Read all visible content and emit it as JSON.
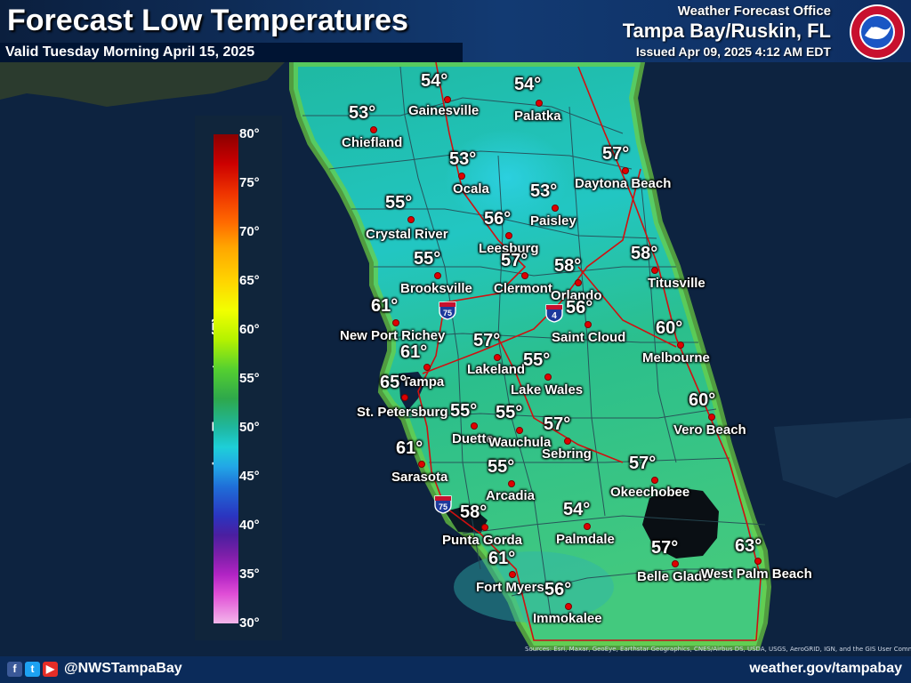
{
  "header": {
    "title": "Forecast Low Temperatures",
    "valid": "Valid Tuesday Morning April 15, 2025",
    "office_top": "Weather Forecast Office",
    "office_location": "Tampa Bay/Ruskin, FL",
    "issued": "Issued Apr 09, 2025 4:12 AM EDT",
    "logo_text": "NATIONAL WEATHER SERVICE"
  },
  "legend": {
    "title": "Low Temperature (F)",
    "ticks": [
      "80°",
      "75°",
      "70°",
      "65°",
      "60°",
      "55°",
      "50°",
      "45°",
      "40°",
      "35°",
      "30°"
    ]
  },
  "cities": [
    {
      "name": "Gainesville",
      "temp": "54°"
    },
    {
      "name": "Palatka",
      "temp": "54°"
    },
    {
      "name": "Chiefland",
      "temp": "53°"
    },
    {
      "name": "Ocala",
      "temp": "53°"
    },
    {
      "name": "Daytona Beach",
      "temp": "57°"
    },
    {
      "name": "Paisley",
      "temp": "53°"
    },
    {
      "name": "Crystal River",
      "temp": "55°"
    },
    {
      "name": "Leesburg",
      "temp": "56°"
    },
    {
      "name": "Clermont",
      "temp": "57°"
    },
    {
      "name": "Orlando",
      "temp": "58°"
    },
    {
      "name": "Titusville",
      "temp": "58°"
    },
    {
      "name": "Brooksville",
      "temp": "55°"
    },
    {
      "name": "New Port Richey",
      "temp": "61°"
    },
    {
      "name": "Saint Cloud",
      "temp": "56°"
    },
    {
      "name": "Melbourne",
      "temp": "60°"
    },
    {
      "name": "Lakeland",
      "temp": "57°"
    },
    {
      "name": "Tampa",
      "temp": "61°"
    },
    {
      "name": "Lake Wales",
      "temp": "55°"
    },
    {
      "name": "St. Petersburg",
      "temp": "65°"
    },
    {
      "name": "Vero Beach",
      "temp": "60°"
    },
    {
      "name": "Duette",
      "temp": "55°"
    },
    {
      "name": "Wauchula",
      "temp": "55°"
    },
    {
      "name": "Sebring",
      "temp": "57°"
    },
    {
      "name": "Sarasota",
      "temp": "61°"
    },
    {
      "name": "Okeechobee",
      "temp": "57°"
    },
    {
      "name": "Arcadia",
      "temp": "55°"
    },
    {
      "name": "Punta Gorda",
      "temp": "58°"
    },
    {
      "name": "Palmdale",
      "temp": "54°"
    },
    {
      "name": "Fort Myers",
      "temp": "61°"
    },
    {
      "name": "Belle Glade",
      "temp": "57°"
    },
    {
      "name": "West Palm Beach",
      "temp": "63°"
    },
    {
      "name": "Immokalee",
      "temp": "56°"
    }
  ],
  "highways": [
    "75",
    "4",
    "75"
  ],
  "attribution": "Sources: Esri, Maxar, GeoEye, Earthstar Geographics, CNES/Airbus DS, USDA, USGS, AeroGRID, IGN, and the GIS User Community",
  "footer": {
    "icons": [
      "facebook-icon",
      "twitter-icon",
      "youtube-icon"
    ],
    "handle": "@NWSTampaBay",
    "website": "weather.gov/tampabay"
  },
  "colors": {
    "header_bg": "#123a72",
    "footer_bg": "#0b2b5a",
    "water": "#0d2340",
    "city_dot": "#e00000",
    "roads": "#d01010"
  }
}
